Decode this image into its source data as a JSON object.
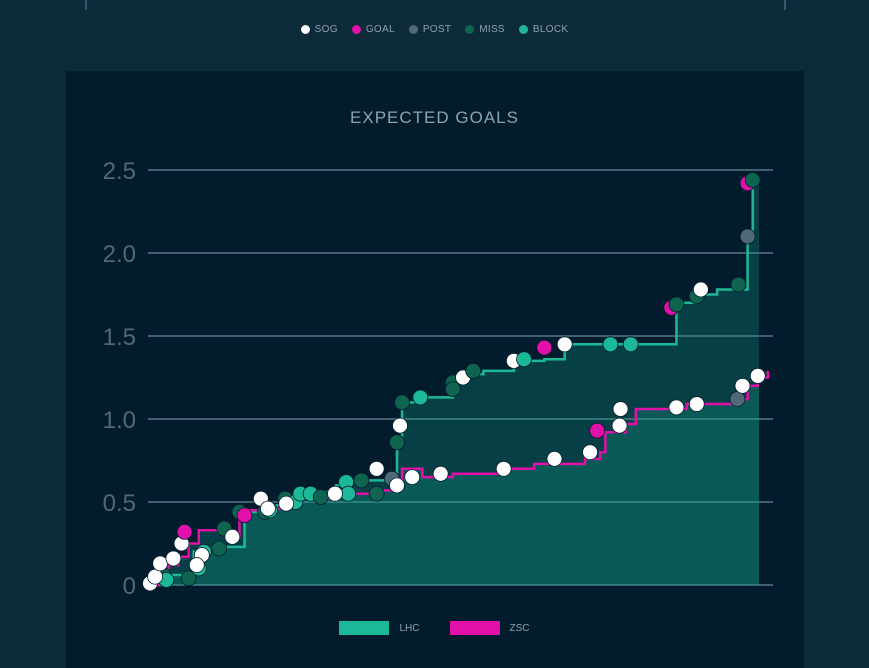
{
  "legend_shots": [
    {
      "label": "SOG",
      "color": "#ffffff"
    },
    {
      "label": "GOAL",
      "color": "#e010a8"
    },
    {
      "label": "POST",
      "color": "#50687a"
    },
    {
      "label": "MISS",
      "color": "#0f6450"
    },
    {
      "label": "BLOCK",
      "color": "#1db898"
    }
  ],
  "legend_teams": [
    {
      "label": "LHC",
      "color": "#1db898"
    },
    {
      "label": "ZSC",
      "color": "#e010a8"
    }
  ],
  "chart_data": {
    "type": "line",
    "title": "EXPECTED GOALS",
    "ylim": [
      0,
      2.5
    ],
    "yticks": [
      "0",
      "0.5",
      "1.0",
      "1.5",
      "2.0",
      "2.5"
    ],
    "ytick_values": [
      0,
      0.5,
      1.0,
      1.5,
      2.0,
      2.5
    ],
    "xlim": [
      0,
      61.5
    ],
    "series": [
      {
        "name": "LHC",
        "values": [
          [
            0,
            0
          ],
          [
            1.5,
            0.06
          ],
          [
            3.5,
            0.07
          ],
          [
            4.5,
            0.2
          ],
          [
            5.5,
            0.22
          ],
          [
            7,
            0.23
          ],
          [
            9.5,
            0.44
          ],
          [
            12,
            0.48
          ],
          [
            13,
            0.5
          ],
          [
            14.5,
            0.55
          ],
          [
            17,
            0.56
          ],
          [
            18.5,
            0.6
          ],
          [
            19.5,
            0.62
          ],
          [
            21,
            0.63
          ],
          [
            24,
            0.66
          ],
          [
            24.5,
            0.7
          ],
          [
            24.5,
            0.86
          ],
          [
            25,
            0.94
          ],
          [
            25,
            1.1
          ],
          [
            27,
            1.13
          ],
          [
            30,
            1.22
          ],
          [
            31,
            1.27
          ],
          [
            33,
            1.29
          ],
          [
            36,
            1.35
          ],
          [
            39,
            1.36
          ],
          [
            41,
            1.45
          ],
          [
            46,
            1.45
          ],
          [
            52,
            1.45
          ],
          [
            52,
            1.7
          ],
          [
            54,
            1.75
          ],
          [
            56,
            1.78
          ],
          [
            59,
            1.81
          ],
          [
            59,
            2.1
          ],
          [
            59.5,
            2.43
          ],
          [
            60,
            2.44
          ]
        ],
        "shots": [
          [
            "MISS",
            1.5,
            0.06
          ],
          [
            "BLOCK",
            1.8,
            0.03
          ],
          [
            "MISS",
            4,
            0.04
          ],
          [
            "BLOCK",
            5,
            0.1
          ],
          [
            "BLOCK",
            5.5,
            0.2
          ],
          [
            "MISS",
            7,
            0.22
          ],
          [
            "MISS",
            9,
            0.44
          ],
          [
            "MISS",
            7.5,
            0.34
          ],
          [
            "MISS",
            11.5,
            0.44
          ],
          [
            "BLOCK",
            12,
            0.45
          ],
          [
            "MISS",
            13.5,
            0.52
          ],
          [
            "BLOCK",
            14.5,
            0.5
          ],
          [
            "BLOCK",
            15,
            0.55
          ],
          [
            "BLOCK",
            16,
            0.55
          ],
          [
            "MISS",
            17,
            0.53
          ],
          [
            "BLOCK",
            19.5,
            0.62
          ],
          [
            "BLOCK",
            19.7,
            0.55
          ],
          [
            "MISS",
            21,
            0.63
          ],
          [
            "MISS",
            22.5,
            0.55
          ],
          [
            "POST",
            24,
            0.64
          ],
          [
            "MISS",
            24.5,
            0.86
          ],
          [
            "SOG",
            24.8,
            0.96
          ],
          [
            "MISS",
            25,
            1.1
          ],
          [
            "BLOCK",
            26.8,
            1.13
          ],
          [
            "MISS",
            30,
            1.22
          ],
          [
            "MISS",
            30,
            1.18
          ],
          [
            "SOG",
            31,
            1.25
          ],
          [
            "MISS",
            32,
            1.29
          ],
          [
            "SOG",
            36,
            1.35
          ],
          [
            "BLOCK",
            37,
            1.36
          ],
          [
            "GOAL",
            39,
            1.43
          ],
          [
            "SOG",
            41,
            1.45
          ],
          [
            "BLOCK",
            45.5,
            1.45
          ],
          [
            "BLOCK",
            47.5,
            1.45
          ],
          [
            "GOAL",
            51.5,
            1.67
          ],
          [
            "MISS",
            52,
            1.69
          ],
          [
            "MISS",
            54,
            1.74
          ],
          [
            "SOG",
            54.4,
            1.78
          ],
          [
            "MISS",
            58.1,
            1.81
          ],
          [
            "POST",
            59,
            2.1
          ],
          [
            "GOAL",
            59,
            2.42
          ],
          [
            "MISS",
            59.5,
            2.44
          ]
        ]
      },
      {
        "name": "ZSC",
        "values": [
          [
            0,
            0
          ],
          [
            1,
            0.04
          ],
          [
            2,
            0.12
          ],
          [
            3,
            0.17
          ],
          [
            4,
            0.25
          ],
          [
            5,
            0.33
          ],
          [
            7,
            0.33
          ],
          [
            8.3,
            0.33
          ],
          [
            8.5,
            0.29
          ],
          [
            9,
            0.42
          ],
          [
            10,
            0.45
          ],
          [
            12,
            0.46
          ],
          [
            14,
            0.52
          ],
          [
            18,
            0.55
          ],
          [
            21,
            0.55
          ],
          [
            22,
            0.57
          ],
          [
            24,
            0.6
          ],
          [
            25,
            0.7
          ],
          [
            27,
            0.65
          ],
          [
            30,
            0.67
          ],
          [
            35,
            0.7
          ],
          [
            38,
            0.73
          ],
          [
            43,
            0.76
          ],
          [
            44.5,
            0.8
          ],
          [
            45,
            0.92
          ],
          [
            47,
            0.97
          ],
          [
            48,
            1.06
          ],
          [
            51,
            1.06
          ],
          [
            53,
            1.09
          ],
          [
            56,
            1.09
          ],
          [
            58,
            1.12
          ],
          [
            59,
            1.2
          ],
          [
            60,
            1.25
          ],
          [
            61,
            1.29
          ]
        ],
        "shots": [
          [
            "SOG",
            0.2,
            0.01
          ],
          [
            "SOG",
            0.7,
            0.05
          ],
          [
            "SOG",
            1.2,
            0.13
          ],
          [
            "SOG",
            2.5,
            0.16
          ],
          [
            "SOG",
            3.3,
            0.25
          ],
          [
            "GOAL",
            3.6,
            0.32
          ],
          [
            "SOG",
            5.3,
            0.18
          ],
          [
            "SOG",
            4.8,
            0.12
          ],
          [
            "SOG",
            8.3,
            0.29
          ],
          [
            "GOAL",
            9.5,
            0.42
          ],
          [
            "SOG",
            11.1,
            0.52
          ],
          [
            "SOG",
            11.8,
            0.46
          ],
          [
            "SOG",
            13.6,
            0.49
          ],
          [
            "SOG",
            18.4,
            0.55
          ],
          [
            "SOG",
            22.5,
            0.7
          ],
          [
            "SOG",
            24.5,
            0.6
          ],
          [
            "SOG",
            26,
            0.65
          ],
          [
            "SOG",
            28.8,
            0.67
          ],
          [
            "SOG",
            35,
            0.7
          ],
          [
            "SOG",
            40,
            0.76
          ],
          [
            "SOG",
            43.5,
            0.8
          ],
          [
            "GOAL",
            44.2,
            0.93
          ],
          [
            "SOG",
            46.4,
            0.96
          ],
          [
            "SOG",
            46.5,
            1.06
          ],
          [
            "SOG",
            52,
            1.07
          ],
          [
            "SOG",
            54,
            1.09
          ],
          [
            "POST",
            58,
            1.12
          ],
          [
            "SOG",
            58.5,
            1.2
          ],
          [
            "SOG",
            60,
            1.26
          ]
        ]
      }
    ]
  }
}
